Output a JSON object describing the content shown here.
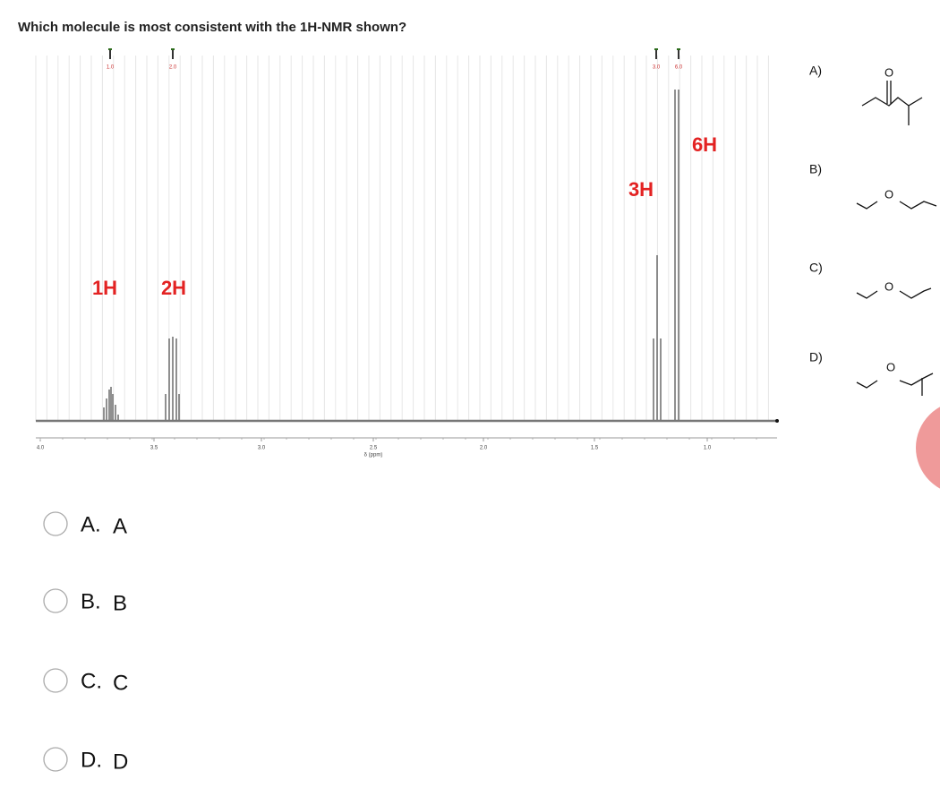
{
  "question": "Which molecule is most consistent with the 1H-NMR shown?",
  "spectrum": {
    "x_axis_label": "δ (ppm)",
    "x_ticks": [
      "4.0",
      "3.5",
      "3.0",
      "2.5",
      "2.0",
      "1.5",
      "1.0"
    ],
    "integrations": [
      "1.0",
      "2.0",
      "3.0",
      "6.0"
    ],
    "peak_labels": [
      "1H",
      "2H",
      "3H",
      "6H"
    ]
  },
  "molecules": [
    {
      "label": "A)",
      "atom": "O"
    },
    {
      "label": "B)",
      "atom": "O"
    },
    {
      "label": "C)",
      "atom": "O"
    },
    {
      "label": "D)",
      "atom": "O"
    }
  ],
  "options": [
    {
      "letter": "A.",
      "text": "A"
    },
    {
      "letter": "B.",
      "text": "B"
    },
    {
      "letter": "C.",
      "text": "C"
    },
    {
      "letter": "D.",
      "text": "D"
    }
  ]
}
